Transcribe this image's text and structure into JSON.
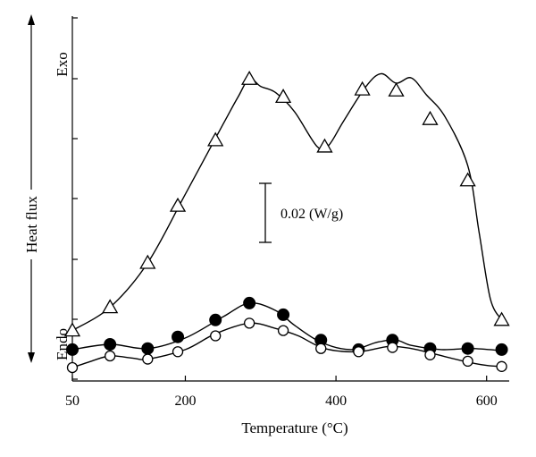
{
  "chart_data": {
    "type": "line",
    "title": "",
    "xlabel": "Temperature (°C)",
    "ylabel": "Heat flux",
    "xlim": [
      50,
      630
    ],
    "x_ticks": [
      50,
      200,
      400,
      600
    ],
    "x_tick_labels": [
      "50",
      "200",
      "400",
      "600"
    ],
    "y_ticks_unlabeled": true,
    "y_direction_labels": {
      "top": "Exo",
      "bottom": "Endo"
    },
    "scale_bar": {
      "label": "0.02 (W/g)",
      "value": 0.02
    },
    "grid": false,
    "series": [
      {
        "marker": "open-triangle",
        "curve": [
          [
            50,
            0.035
          ],
          [
            100,
            0.057
          ],
          [
            150,
            0.099
          ],
          [
            200,
            0.164
          ],
          [
            250,
            0.23
          ],
          [
            270,
            0.256
          ],
          [
            285,
            0.273
          ],
          [
            300,
            0.266
          ],
          [
            320,
            0.26
          ],
          [
            345,
            0.242
          ],
          [
            375,
            0.209
          ],
          [
            390,
            0.21
          ],
          [
            410,
            0.233
          ],
          [
            440,
            0.266
          ],
          [
            460,
            0.278
          ],
          [
            480,
            0.269
          ],
          [
            500,
            0.274
          ],
          [
            520,
            0.258
          ],
          [
            545,
            0.237
          ],
          [
            575,
            0.191
          ],
          [
            590,
            0.128
          ],
          [
            605,
            0.065
          ],
          [
            620,
            0.045
          ]
        ],
        "markers": [
          [
            50,
            0.035
          ],
          [
            100,
            0.057
          ],
          [
            150,
            0.099
          ],
          [
            190,
            0.153
          ],
          [
            240,
            0.215
          ],
          [
            285,
            0.273
          ],
          [
            330,
            0.256
          ],
          [
            385,
            0.209
          ],
          [
            435,
            0.263
          ],
          [
            480,
            0.262
          ],
          [
            525,
            0.235
          ],
          [
            575,
            0.177
          ],
          [
            620,
            0.045
          ]
        ]
      },
      {
        "marker": "filled-circle",
        "curve": [
          [
            50,
            0.017
          ],
          [
            100,
            0.022
          ],
          [
            150,
            0.018
          ],
          [
            200,
            0.028
          ],
          [
            250,
            0.048
          ],
          [
            285,
            0.061
          ],
          [
            320,
            0.054
          ],
          [
            345,
            0.04
          ],
          [
            380,
            0.024
          ],
          [
            420,
            0.017
          ],
          [
            455,
            0.024
          ],
          [
            480,
            0.026
          ],
          [
            500,
            0.021
          ],
          [
            540,
            0.017
          ],
          [
            580,
            0.018
          ],
          [
            620,
            0.016
          ]
        ],
        "markers": [
          [
            50,
            0.017
          ],
          [
            100,
            0.022
          ],
          [
            150,
            0.018
          ],
          [
            190,
            0.029
          ],
          [
            240,
            0.045
          ],
          [
            285,
            0.061
          ],
          [
            330,
            0.05
          ],
          [
            380,
            0.026
          ],
          [
            430,
            0.017
          ],
          [
            475,
            0.026
          ],
          [
            525,
            0.018
          ],
          [
            575,
            0.018
          ],
          [
            620,
            0.017
          ]
        ]
      },
      {
        "marker": "open-circle",
        "curve": [
          [
            50,
            0.0
          ],
          [
            75,
            0.006
          ],
          [
            100,
            0.011
          ],
          [
            130,
            0.009
          ],
          [
            150,
            0.008
          ],
          [
            200,
            0.017
          ],
          [
            240,
            0.032
          ],
          [
            285,
            0.042
          ],
          [
            320,
            0.037
          ],
          [
            350,
            0.03
          ],
          [
            385,
            0.018
          ],
          [
            430,
            0.015
          ],
          [
            470,
            0.02
          ],
          [
            500,
            0.018
          ],
          [
            530,
            0.013
          ],
          [
            570,
            0.006
          ],
          [
            600,
            0.002
          ],
          [
            620,
            0.001
          ]
        ],
        "markers": [
          [
            50,
            0.0
          ],
          [
            100,
            0.011
          ],
          [
            150,
            0.008
          ],
          [
            190,
            0.015
          ],
          [
            240,
            0.03
          ],
          [
            285,
            0.042
          ],
          [
            330,
            0.035
          ],
          [
            380,
            0.018
          ],
          [
            430,
            0.015
          ],
          [
            475,
            0.019
          ],
          [
            525,
            0.012
          ],
          [
            575,
            0.006
          ],
          [
            620,
            0.001
          ]
        ]
      }
    ]
  }
}
